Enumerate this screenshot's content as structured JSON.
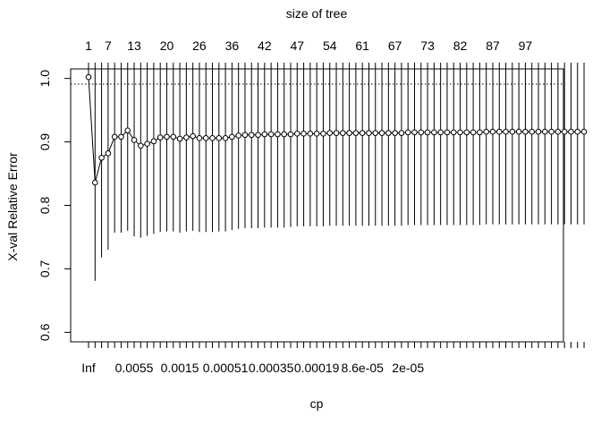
{
  "chart_data": {
    "type": "line",
    "xlabel": "cp",
    "ylabel": "X-val Relative Error",
    "top_axis_label": "size of tree",
    "ylim": [
      0.585,
      1.015
    ],
    "yticks": [
      0.6,
      0.7,
      0.8,
      0.9,
      1.0
    ],
    "ytick_labels": [
      "0.6",
      "0.7",
      "0.8",
      "0.9",
      "1.0"
    ],
    "reference_line": 0.991,
    "bottom_tick_labels": [
      {
        "index": 0,
        "label": "Inf"
      },
      {
        "index": 7,
        "label": "0.0055"
      },
      {
        "index": 14,
        "label": "0.0015"
      },
      {
        "index": 21,
        "label": "0.00051"
      },
      {
        "index": 28,
        "label": "0.00035"
      },
      {
        "index": 35,
        "label": "0.00019"
      },
      {
        "index": 42,
        "label": "8.6e-05"
      },
      {
        "index": 49,
        "label": "2e-05"
      }
    ],
    "top_tick_labels": [
      {
        "index": 0,
        "label": "1"
      },
      {
        "index": 3,
        "label": "7"
      },
      {
        "index": 7,
        "label": "13"
      },
      {
        "index": 12,
        "label": "20"
      },
      {
        "index": 17,
        "label": "26"
      },
      {
        "index": 22,
        "label": "36"
      },
      {
        "index": 27,
        "label": "42"
      },
      {
        "index": 32,
        "label": "47"
      },
      {
        "index": 37,
        "label": "54"
      },
      {
        "index": 42,
        "label": "61"
      },
      {
        "index": 47,
        "label": "67"
      },
      {
        "index": 52,
        "label": "73"
      },
      {
        "index": 57,
        "label": "82"
      },
      {
        "index": 62,
        "label": "87"
      },
      {
        "index": 67,
        "label": "97"
      }
    ],
    "series": [
      {
        "xerror": [
          1.002,
          0.836,
          0.875,
          0.882,
          0.908,
          0.908,
          0.918,
          0.903,
          0.894,
          0.897,
          0.901,
          0.907,
          0.908,
          0.908,
          0.905,
          0.907,
          0.909,
          0.906,
          0.906,
          0.906,
          0.906,
          0.906,
          0.908,
          0.91,
          0.911,
          0.911,
          0.911,
          0.912,
          0.912,
          0.912,
          0.912,
          0.912,
          0.913,
          0.913,
          0.913,
          0.913,
          0.913,
          0.914,
          0.914,
          0.914,
          0.914,
          0.914,
          0.914,
          0.914,
          0.914,
          0.914,
          0.914,
          0.914,
          0.914,
          0.915,
          0.915,
          0.915,
          0.915,
          0.915,
          0.915,
          0.915,
          0.915,
          0.915,
          0.915,
          0.915,
          0.915,
          0.916,
          0.916,
          0.916,
          0.916,
          0.916,
          0.916,
          0.916,
          0.916,
          0.916,
          0.916,
          0.916,
          0.916,
          0.916,
          0.916,
          0.916,
          0.916
        ],
        "lower": [
          1.0,
          0.681,
          0.718,
          0.73,
          0.757,
          0.757,
          0.76,
          0.751,
          0.749,
          0.752,
          0.755,
          0.758,
          0.759,
          0.759,
          0.757,
          0.759,
          0.76,
          0.758,
          0.758,
          0.758,
          0.759,
          0.759,
          0.761,
          0.763,
          0.764,
          0.764,
          0.764,
          0.765,
          0.765,
          0.765,
          0.765,
          0.766,
          0.767,
          0.767,
          0.767,
          0.767,
          0.767,
          0.768,
          0.768,
          0.768,
          0.768,
          0.768,
          0.768,
          0.768,
          0.768,
          0.768,
          0.768,
          0.768,
          0.768,
          0.769,
          0.769,
          0.769,
          0.769,
          0.769,
          0.769,
          0.769,
          0.769,
          0.769,
          0.769,
          0.769,
          0.769,
          0.77,
          0.77,
          0.77,
          0.77,
          0.77,
          0.77,
          0.77,
          0.77,
          0.77,
          0.77,
          0.77,
          0.77,
          0.77,
          0.77,
          0.77,
          0.77
        ],
        "upper": [
          1.015,
          1.015,
          1.015,
          1.015,
          1.015,
          1.015,
          1.015,
          1.015,
          1.015,
          1.015,
          1.015,
          1.015,
          1.015,
          1.015,
          1.015,
          1.015,
          1.015,
          1.015,
          1.015,
          1.015,
          1.015,
          1.015,
          1.015,
          1.015,
          1.015,
          1.015,
          1.015,
          1.015,
          1.015,
          1.015,
          1.015,
          1.015,
          1.015,
          1.015,
          1.015,
          1.015,
          1.015,
          1.015,
          1.015,
          1.015,
          1.015,
          1.015,
          1.015,
          1.015,
          1.015,
          1.015,
          1.015,
          1.015,
          1.015,
          1.015,
          1.015,
          1.015,
          1.015,
          1.015,
          1.015,
          1.015,
          1.015,
          1.015,
          1.015,
          1.015,
          1.015,
          1.015,
          1.015,
          1.015,
          1.015,
          1.015,
          1.015,
          1.015,
          1.015,
          1.015,
          1.015,
          1.015,
          1.015,
          1.015,
          1.015,
          1.015,
          1.015
        ]
      }
    ],
    "grid": false,
    "legend": "none",
    "colors": {
      "line": "#000000",
      "background": "#ffffff"
    }
  }
}
